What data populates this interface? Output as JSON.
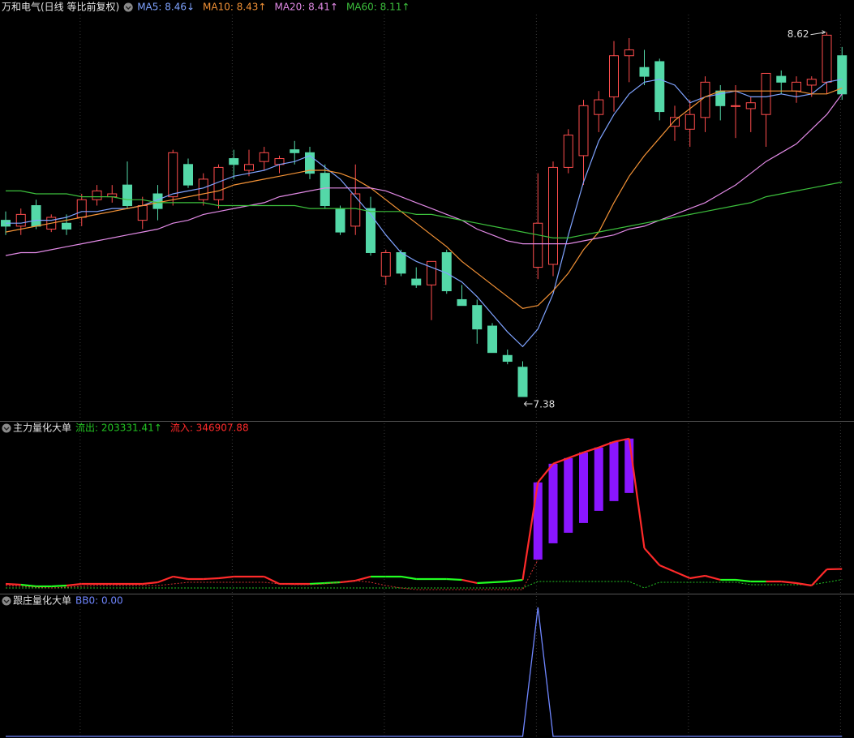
{
  "chart_data": [
    {
      "type": "candlestick",
      "title": "万和电气(日线 等比前复权)",
      "up_color": "#ff4d4d",
      "down_color": "#54d8a8",
      "grid": true,
      "ylim": [
        7.3,
        8.68
      ],
      "ohlc": [
        [
          7.98,
          8.01,
          7.93,
          7.96
        ],
        [
          7.96,
          8.02,
          7.93,
          8.0
        ],
        [
          8.03,
          8.05,
          7.95,
          7.96
        ],
        [
          7.95,
          8.0,
          7.94,
          7.99
        ],
        [
          7.97,
          8.0,
          7.93,
          7.95
        ],
        [
          7.99,
          8.07,
          7.96,
          8.05
        ],
        [
          8.05,
          8.1,
          8.03,
          8.08
        ],
        [
          8.06,
          8.1,
          8.04,
          8.07
        ],
        [
          8.1,
          8.18,
          8.02,
          8.03
        ],
        [
          7.98,
          8.06,
          7.95,
          8.03
        ],
        [
          8.07,
          8.1,
          7.98,
          8.02
        ],
        [
          8.06,
          8.22,
          8.03,
          8.21
        ],
        [
          8.17,
          8.19,
          8.09,
          8.1
        ],
        [
          8.05,
          8.14,
          8.03,
          8.12
        ],
        [
          8.05,
          8.17,
          8.02,
          8.16
        ],
        [
          8.19,
          8.22,
          8.12,
          8.17
        ],
        [
          8.15,
          8.22,
          8.13,
          8.17
        ],
        [
          8.18,
          8.23,
          8.15,
          8.21
        ],
        [
          8.17,
          8.2,
          8.14,
          8.19
        ],
        [
          8.22,
          8.25,
          8.17,
          8.21
        ],
        [
          8.21,
          8.23,
          8.12,
          8.14
        ],
        [
          8.14,
          8.17,
          8.02,
          8.03
        ],
        [
          8.02,
          8.03,
          7.93,
          7.94
        ],
        [
          7.96,
          8.17,
          7.93,
          8.07
        ],
        [
          8.02,
          8.06,
          7.86,
          7.87
        ],
        [
          7.79,
          7.88,
          7.76,
          7.87
        ],
        [
          7.87,
          7.88,
          7.79,
          7.8
        ],
        [
          7.78,
          7.82,
          7.75,
          7.76
        ],
        [
          7.76,
          7.84,
          7.64,
          7.84
        ],
        [
          7.87,
          7.88,
          7.73,
          7.74
        ],
        [
          7.71,
          7.76,
          7.69,
          7.69
        ],
        [
          7.69,
          7.71,
          7.56,
          7.61
        ],
        [
          7.62,
          7.63,
          7.53,
          7.53
        ],
        [
          7.52,
          7.54,
          7.49,
          7.5
        ],
        [
          7.48,
          7.5,
          7.38,
          7.38
        ],
        [
          7.82,
          8.14,
          7.78,
          7.97
        ],
        [
          7.83,
          8.18,
          7.79,
          8.16
        ],
        [
          8.16,
          8.29,
          8.14,
          8.27
        ],
        [
          8.2,
          8.39,
          8.1,
          8.37
        ],
        [
          8.34,
          8.42,
          8.28,
          8.39
        ],
        [
          8.4,
          8.59,
          8.35,
          8.54
        ],
        [
          8.54,
          8.6,
          8.45,
          8.56
        ],
        [
          8.5,
          8.56,
          8.44,
          8.47
        ],
        [
          8.52,
          8.53,
          8.32,
          8.35
        ],
        [
          8.3,
          8.37,
          8.25,
          8.33
        ],
        [
          8.29,
          8.39,
          8.23,
          8.34
        ],
        [
          8.33,
          8.47,
          8.28,
          8.45
        ],
        [
          8.42,
          8.44,
          8.32,
          8.37
        ],
        [
          8.37,
          8.44,
          8.26,
          8.37
        ],
        [
          8.36,
          8.4,
          8.28,
          8.38
        ],
        [
          8.34,
          8.48,
          8.23,
          8.48
        ],
        [
          8.47,
          8.49,
          8.41,
          8.45
        ],
        [
          8.42,
          8.47,
          8.38,
          8.45
        ],
        [
          8.44,
          8.47,
          8.4,
          8.46
        ],
        [
          8.45,
          8.62,
          8.41,
          8.61
        ],
        [
          8.54,
          8.57,
          8.39,
          8.41
        ]
      ],
      "series": [
        {
          "name": "MA5: 8.46↓",
          "color": "#7fa3ff",
          "values": [
            7.97,
            7.97,
            7.98,
            7.98,
            7.99,
            8.01,
            8.01,
            8.02,
            8.02,
            8.03,
            8.05,
            8.07,
            8.08,
            8.09,
            8.11,
            8.13,
            8.14,
            8.15,
            8.17,
            8.18,
            8.2,
            8.16,
            8.12,
            8.06,
            8.0,
            7.93,
            7.87,
            7.84,
            7.82,
            7.8,
            7.77,
            7.72,
            7.66,
            7.6,
            7.55,
            7.61,
            7.73,
            7.93,
            8.11,
            8.25,
            8.34,
            8.41,
            8.45,
            8.46,
            8.44,
            8.38,
            8.4,
            8.41,
            8.42,
            8.4,
            8.4,
            8.41,
            8.4,
            8.41,
            8.45,
            8.46
          ]
        },
        {
          "name": "MA10: 8.43↑",
          "color": "#f39236",
          "values": [
            7.94,
            7.95,
            7.96,
            7.97,
            7.98,
            7.99,
            8.0,
            8.01,
            8.02,
            8.03,
            8.04,
            8.05,
            8.06,
            8.07,
            8.08,
            8.1,
            8.11,
            8.12,
            8.13,
            8.14,
            8.15,
            8.15,
            8.14,
            8.12,
            8.09,
            8.05,
            8.01,
            7.97,
            7.93,
            7.89,
            7.84,
            7.8,
            7.76,
            7.72,
            7.68,
            7.69,
            7.74,
            7.8,
            7.88,
            7.94,
            8.04,
            8.13,
            8.2,
            8.26,
            8.32,
            8.36,
            8.4,
            8.42,
            8.42,
            8.42,
            8.42,
            8.42,
            8.42,
            8.41,
            8.41,
            8.43
          ]
        },
        {
          "name": "MA20: 8.41↑",
          "color": "#e28ae6",
          "values": [
            7.86,
            7.87,
            7.87,
            7.88,
            7.89,
            7.9,
            7.91,
            7.92,
            7.93,
            7.94,
            7.95,
            7.97,
            7.98,
            8.0,
            8.01,
            8.02,
            8.03,
            8.04,
            8.06,
            8.07,
            8.08,
            8.09,
            8.09,
            8.09,
            8.09,
            8.08,
            8.06,
            8.04,
            8.02,
            8.0,
            7.98,
            7.95,
            7.93,
            7.91,
            7.9,
            7.9,
            7.9,
            7.9,
            7.91,
            7.92,
            7.93,
            7.95,
            7.96,
            7.98,
            8.0,
            8.02,
            8.04,
            8.07,
            8.1,
            8.14,
            8.18,
            8.21,
            8.24,
            8.29,
            8.34,
            8.41
          ]
        },
        {
          "name": "MA60: 8.11↑",
          "color": "#3cbf3c",
          "values": [
            8.08,
            8.08,
            8.07,
            8.07,
            8.07,
            8.06,
            8.06,
            8.06,
            8.05,
            8.05,
            8.04,
            8.04,
            8.04,
            8.04,
            8.03,
            8.03,
            8.03,
            8.03,
            8.03,
            8.03,
            8.02,
            8.02,
            8.02,
            8.02,
            8.01,
            8.01,
            8.01,
            8.0,
            8.0,
            7.99,
            7.98,
            7.97,
            7.96,
            7.95,
            7.94,
            7.93,
            7.92,
            7.92,
            7.93,
            7.94,
            7.95,
            7.96,
            7.97,
            7.98,
            7.99,
            8.0,
            8.01,
            8.02,
            8.03,
            8.04,
            8.06,
            8.07,
            8.08,
            8.09,
            8.1,
            8.11
          ]
        }
      ],
      "annotations": [
        {
          "value": 8.62,
          "index": 54
        },
        {
          "value": 7.38,
          "index": 34
        }
      ]
    },
    {
      "type": "line",
      "title": "主力量化大单",
      "grid": true,
      "ylim": [
        0,
        2350000
      ],
      "bars": {
        "color": "#8a16ff",
        "x_index": [
          35,
          36,
          37,
          38,
          39,
          40,
          41
        ],
        "top": [
          1524210,
          1778245,
          1855560,
          1932875,
          1999145,
          2076460,
          2120640
        ],
        "bottom": [
          474935,
          695835,
          839420,
          971960,
          1137635,
          1270175,
          1380625
        ]
      },
      "series": [
        {
          "name": "流出: 203331.41↑",
          "color": "#22c322",
          "style": "dashed",
          "values": [
            88360,
            88360,
            88360,
            88360,
            88360,
            88360,
            88360,
            88360,
            88360,
            88360,
            88360,
            88360,
            88360,
            88360,
            88360,
            88360,
            88360,
            88360,
            88360,
            88360,
            88360,
            88360,
            88360,
            88360,
            88360,
            88360,
            88360,
            88360,
            88360,
            88360,
            88360,
            88360,
            88360,
            88360,
            88360,
            176720,
            176720,
            176720,
            176720,
            176720,
            176720,
            176720,
            88360,
            165675,
            165675,
            165675,
            165675,
            165675,
            165675,
            132540,
            132540,
            132540,
            132540,
            132540,
            165675,
            203331.41
          ]
        },
        {
          "name": "流入: 346907.88",
          "color": "#ff2a2a",
          "style": "solid",
          "values": [
            143585,
            132540,
            110450,
            110450,
            121495,
            143585,
            143585,
            143585,
            143585,
            143585,
            165675,
            242990,
            209855,
            209855,
            220900,
            242990,
            242990,
            242990,
            143585,
            143585,
            143585,
            154630,
            165675,
            187765,
            242990,
            242990,
            242990,
            209855,
            209855,
            209855,
            198810,
            154630,
            165675,
            176720,
            198810,
            1524210,
            1778245,
            1855560,
            1932875,
            1999145,
            2076460,
            2120640,
            629565,
            397620,
            309260,
            220900,
            254035,
            198810,
            198810,
            176720,
            176720,
            176720,
            154630,
            121495,
            342395,
            346907.88
          ],
          "point_colors": [
            "#ff2a2a",
            "#ff2a2a",
            "#22ff22",
            "#22ff22",
            "#22ff22",
            "#ff2a2a",
            "#ff2a2a",
            "#ff2a2a",
            "#ff2a2a",
            "#ff2a2a",
            "#ff2a2a",
            "#ff2a2a",
            "#ff2a2a",
            "#ff2a2a",
            "#ff2a2a",
            "#ff2a2a",
            "#ff2a2a",
            "#ff2a2a",
            "#ff2a2a",
            "#ff2a2a",
            "#ff2a2a",
            "#22ff22",
            "#22ff22",
            "#ff2a2a",
            "#ff2a2a",
            "#22ff22",
            "#22ff22",
            "#22ff22",
            "#22ff22",
            "#22ff22",
            "#22ff22",
            "#ff2a2a",
            "#22ff22",
            "#22ff22",
            "#22ff22",
            "#ff2a2a",
            "#ff2a2a",
            "#ff2a2a",
            "#ff2a2a",
            "#ff2a2a",
            "#ff2a2a",
            "#ff2a2a",
            "#ff2a2a",
            "#ff2a2a",
            "#ff2a2a",
            "#ff2a2a",
            "#ff2a2a",
            "#ff2a2a",
            "#22ff22",
            "#22ff22",
            "#22ff22",
            "#ff2a2a",
            "#ff2a2a",
            "#ff2a2a",
            "#ff2a2a",
            "#ff2a2a"
          ]
        },
        {
          "color": "#d03030",
          "style": "dashed",
          "values": [
            121495,
            110450,
            99405,
            88360,
            99405,
            110450,
            121495,
            121495,
            121495,
            121495,
            121495,
            143585,
            165675,
            165675,
            165675,
            165675,
            165675,
            165675,
            143585,
            132540,
            132540,
            143585,
            165675,
            187765,
            165675,
            121495,
            88360,
            66270,
            66270,
            66270,
            66270,
            66270,
            66270,
            66270,
            66270,
            474935,
            null,
            null,
            null,
            null,
            null,
            null,
            null,
            null,
            null,
            null,
            null,
            null,
            null,
            null,
            null,
            null,
            null,
            null,
            null,
            null
          ]
        }
      ]
    },
    {
      "type": "line",
      "title": "跟庄量化大单",
      "grid": true,
      "ylim": [
        0,
        1.1
      ],
      "series": [
        {
          "name": "BB0: 0.00",
          "color": "#6f86ff",
          "style": "solid",
          "values": [
            0,
            0,
            0,
            0,
            0,
            0,
            0,
            0,
            0,
            0,
            0,
            0,
            0,
            0,
            0,
            0,
            0,
            0,
            0,
            0,
            0,
            0,
            0,
            0,
            0,
            0,
            0,
            0,
            0,
            0,
            0,
            0,
            0,
            0,
            0,
            1,
            0,
            0,
            0,
            0,
            0,
            0,
            0,
            0,
            0,
            0,
            0,
            0,
            0,
            0,
            0,
            0,
            0,
            0,
            0,
            0
          ]
        }
      ]
    }
  ]
}
